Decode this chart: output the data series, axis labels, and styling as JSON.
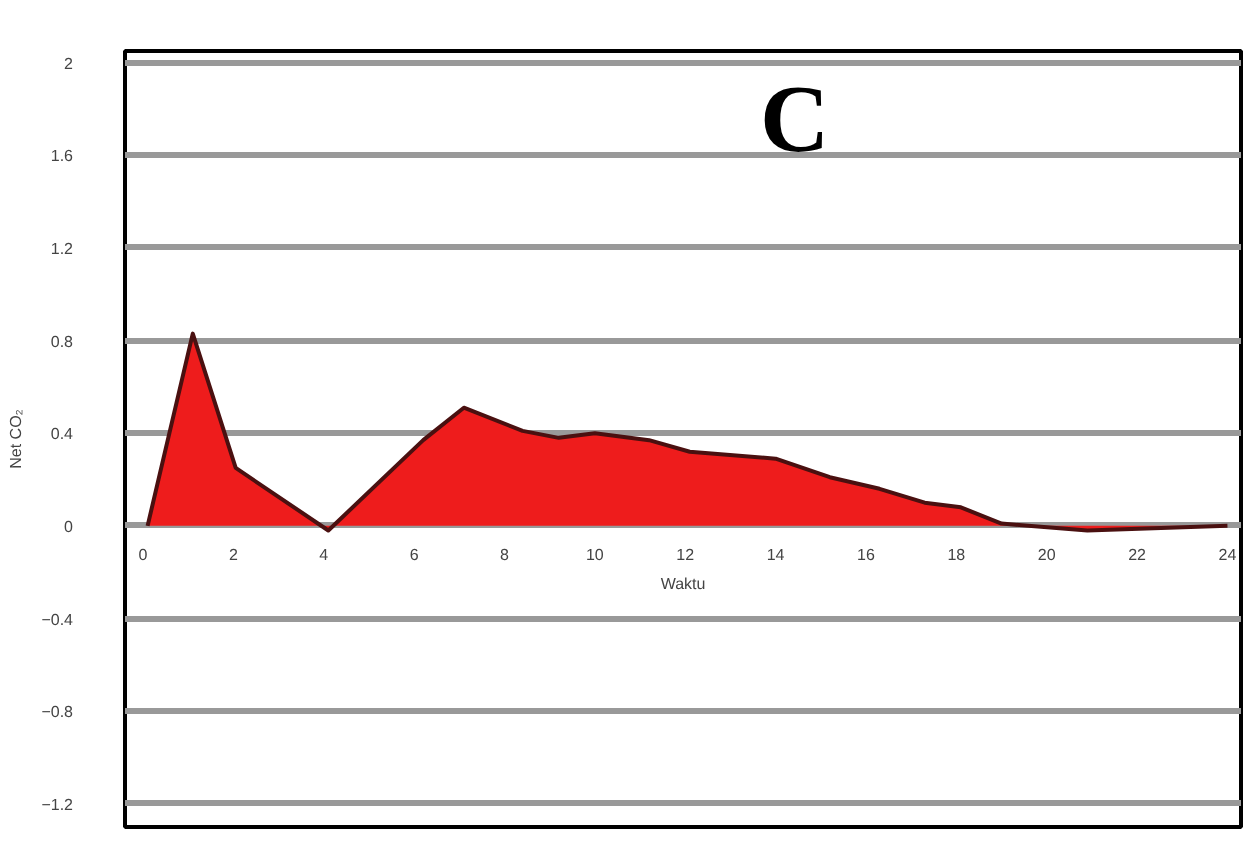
{
  "chart_data": {
    "type": "area",
    "title": "C",
    "xlabel": "Waktu",
    "ylabel": "Net CO₂",
    "x": [
      0.1,
      1.1,
      2.05,
      4.1,
      6.2,
      7.1,
      8.4,
      9.2,
      10.0,
      11.2,
      12.1,
      14.0,
      15.2,
      16.3,
      17.3,
      18.1,
      19.0,
      20.9,
      24
    ],
    "series": [
      {
        "color": "#ee1c1c",
        "values": [
          0,
          0.83,
          0.25,
          -0.02,
          0.37,
          0.51,
          0.41,
          0.38,
          0.4,
          0.37,
          0.32,
          0.29,
          0.21,
          0.16,
          0.1,
          0.08,
          0.01,
          -0.02,
          0
        ]
      }
    ],
    "xlim": [
      -0.4,
      24.3
    ],
    "ylim": [
      -1.3,
      2.05
    ],
    "xticks": [
      0,
      2,
      4,
      6,
      8,
      10,
      12,
      14,
      16,
      18,
      20,
      22,
      24
    ],
    "yticks": [
      2,
      1.6,
      1.2,
      0.8,
      0.4,
      0,
      -0.4,
      -0.8,
      -1.2
    ],
    "grid": "y"
  }
}
